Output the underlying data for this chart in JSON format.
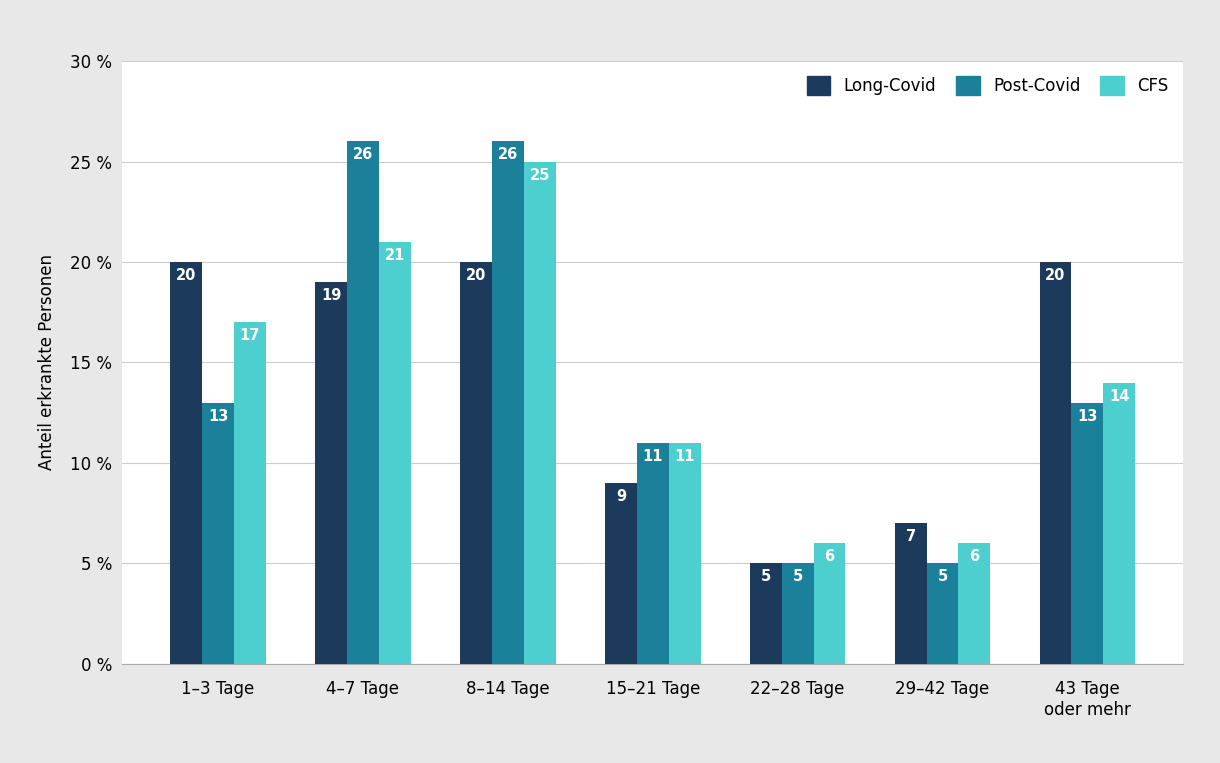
{
  "categories": [
    "1–3 Tage",
    "4–7 Tage",
    "8–14 Tage",
    "15–21 Tage",
    "22–28 Tage",
    "29–42 Tage",
    "43 Tage\noder mehr"
  ],
  "long_covid": [
    20,
    19,
    20,
    9,
    5,
    7,
    20
  ],
  "post_covid": [
    13,
    26,
    26,
    11,
    5,
    5,
    13
  ],
  "cfs": [
    17,
    21,
    25,
    11,
    6,
    6,
    14
  ],
  "color_long": "#1b3a5c",
  "color_post": "#1b8099",
  "color_cfs": "#4dcfcf",
  "ylabel": "Anteil erkrankte Personen",
  "ylim": [
    0,
    30
  ],
  "yticks": [
    0,
    5,
    10,
    15,
    20,
    25,
    30
  ],
  "ytick_labels": [
    "0 %",
    "5 %",
    "10 %",
    "15 %",
    "20 %",
    "25 %",
    "30 %"
  ],
  "legend_labels": [
    "Long-Covid",
    "Post-Covid",
    "CFS"
  ],
  "figure_facecolor": "#e8e8e8",
  "axes_facecolor": "#ffffff",
  "bar_width": 0.22,
  "label_fontsize": 10.5,
  "axis_fontsize": 12,
  "tick_fontsize": 12,
  "legend_fontsize": 12
}
